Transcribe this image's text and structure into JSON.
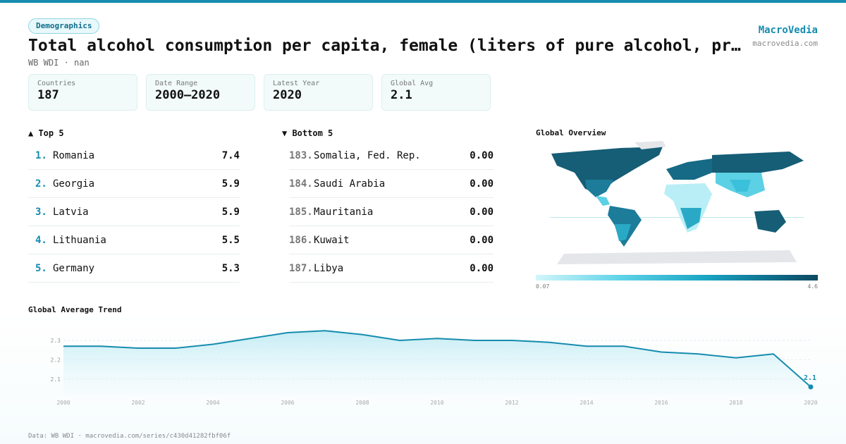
{
  "header": {
    "badge": "Demographics",
    "title": "Total alcohol consumption per capita, female (liters of pure alcohol, pr…",
    "subtitle": "WB WDI · nan",
    "brand": "MacroVedia",
    "site": "macrovedia.com"
  },
  "stats": [
    {
      "label": "Countries",
      "value": 187
    },
    {
      "label": "Date Range",
      "value": "2000–2020"
    },
    {
      "label": "Latest Year",
      "value": 2020
    },
    {
      "label": "Global Avg",
      "value": 2.1
    }
  ],
  "top": {
    "title": "▲ Top 5",
    "rows": [
      {
        "rank": "1.",
        "name": "Romania",
        "value": 7.4
      },
      {
        "rank": "2.",
        "name": "Georgia",
        "value": 5.9
      },
      {
        "rank": "3.",
        "name": "Latvia",
        "value": 5.9
      },
      {
        "rank": "4.",
        "name": "Lithuania",
        "value": 5.5
      },
      {
        "rank": "5.",
        "name": "Germany",
        "value": 5.3
      }
    ]
  },
  "bottom": {
    "title": "▼ Bottom 5",
    "rows": [
      {
        "rank": "183.",
        "name": "Somalia, Fed. Rep.",
        "value": "0.00"
      },
      {
        "rank": "184.",
        "name": "Saudi Arabia",
        "value": "0.00"
      },
      {
        "rank": "185.",
        "name": "Mauritania",
        "value": "0.00"
      },
      {
        "rank": "186.",
        "name": "Kuwait",
        "value": "0.00"
      },
      {
        "rank": "187.",
        "name": "Libya",
        "value": "0.00"
      }
    ]
  },
  "map": {
    "title": "Global Overview",
    "scale_min": 0.07,
    "scale_max": 4.6
  },
  "chart_data": {
    "type": "line",
    "title": "Global Average Trend",
    "x": [
      2000,
      2001,
      2002,
      2003,
      2004,
      2005,
      2006,
      2007,
      2008,
      2009,
      2010,
      2011,
      2012,
      2013,
      2014,
      2015,
      2016,
      2017,
      2018,
      2019,
      2020
    ],
    "values": [
      2.27,
      2.27,
      2.26,
      2.26,
      2.28,
      2.31,
      2.34,
      2.35,
      2.33,
      2.3,
      2.31,
      2.3,
      2.3,
      2.29,
      2.27,
      2.27,
      2.24,
      2.23,
      2.21,
      2.23,
      2.06
    ],
    "value_labels": [
      null,
      null,
      null,
      null,
      null,
      null,
      null,
      null,
      null,
      null,
      null,
      null,
      null,
      null,
      null,
      null,
      null,
      null,
      null,
      null,
      "2.1"
    ],
    "color": "#168cae",
    "xlim": [
      2000,
      2020
    ],
    "ylim": [
      2.02,
      2.38
    ],
    "xticks": [
      2000,
      2002,
      2004,
      2006,
      2008,
      2010,
      2012,
      2014,
      2016,
      2018,
      2020
    ],
    "yticks": [
      2.1,
      2.2,
      2.3
    ],
    "grid": true
  },
  "footer": "Data: WB WDI · macrovedia.com/series/c430d41282fbf06f"
}
